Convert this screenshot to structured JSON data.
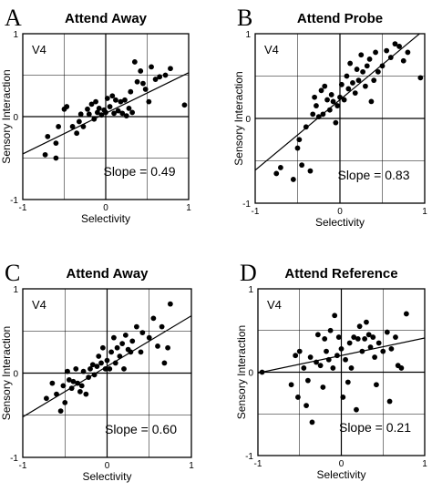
{
  "chart_data": [
    {
      "type": "scatter",
      "panel_letter": "A",
      "title": "Attend Away",
      "area_label": "V4",
      "annotation": "Slope = 0.49",
      "xlabel": "Selectivity",
      "ylabel": "Sensory Interaction",
      "xlim": [
        -1,
        1
      ],
      "ylim": [
        -1,
        1
      ],
      "xticks": [
        "-1",
        "0",
        "1"
      ],
      "yticks": [
        "-1",
        "0",
        "1"
      ],
      "grid": true,
      "fit": {
        "slope": 0.49,
        "intercept": 0.04
      },
      "points": [
        [
          -0.73,
          -0.46
        ],
        [
          -0.6,
          -0.5
        ],
        [
          -0.7,
          -0.24
        ],
        [
          -0.6,
          -0.32
        ],
        [
          -0.57,
          -0.12
        ],
        [
          -0.5,
          0.09
        ],
        [
          -0.47,
          0.12
        ],
        [
          -0.4,
          -0.12
        ],
        [
          -0.35,
          -0.2
        ],
        [
          -0.32,
          -0.06
        ],
        [
          -0.3,
          0.03
        ],
        [
          -0.27,
          -0.12
        ],
        [
          -0.22,
          0.09
        ],
        [
          -0.2,
          0.03
        ],
        [
          -0.17,
          0.15
        ],
        [
          -0.14,
          -0.03
        ],
        [
          -0.12,
          0.18
        ],
        [
          -0.1,
          0.05
        ],
        [
          -0.08,
          0.1
        ],
        [
          -0.05,
          0.02
        ],
        [
          -0.02,
          0.08
        ],
        [
          0.0,
          0.05
        ],
        [
          0.02,
          0.22
        ],
        [
          0.05,
          0.12
        ],
        [
          0.08,
          0.25
        ],
        [
          0.1,
          0.04
        ],
        [
          0.12,
          0.2
        ],
        [
          0.15,
          0.07
        ],
        [
          0.18,
          0.18
        ],
        [
          0.2,
          0.04
        ],
        [
          0.23,
          0.2
        ],
        [
          0.25,
          0.01
        ],
        [
          0.28,
          0.1
        ],
        [
          0.3,
          0.3
        ],
        [
          0.32,
          0.05
        ],
        [
          0.35,
          0.66
        ],
        [
          0.38,
          0.42
        ],
        [
          0.42,
          0.55
        ],
        [
          0.45,
          0.4
        ],
        [
          0.48,
          0.33
        ],
        [
          0.52,
          0.18
        ],
        [
          0.55,
          0.6
        ],
        [
          0.6,
          0.45
        ],
        [
          0.65,
          0.48
        ],
        [
          0.72,
          0.5
        ],
        [
          0.78,
          0.58
        ],
        [
          0.95,
          0.14
        ]
      ]
    },
    {
      "type": "scatter",
      "panel_letter": "B",
      "title": "Attend Probe",
      "area_label": "V4",
      "annotation": "Slope = 0.83",
      "xlabel": "Selectivity",
      "ylabel": "Sensory Interaction",
      "xlim": [
        -1,
        1
      ],
      "ylim": [
        -1,
        1
      ],
      "xticks": [
        "-1",
        "0",
        "1"
      ],
      "yticks": [
        "-1",
        "0",
        "1"
      ],
      "grid": true,
      "fit": {
        "slope": 0.83,
        "intercept": 0.22
      },
      "points": [
        [
          -0.75,
          -0.65
        ],
        [
          -0.7,
          -0.58
        ],
        [
          -0.55,
          -0.72
        ],
        [
          -0.5,
          -0.35
        ],
        [
          -0.48,
          -0.25
        ],
        [
          -0.45,
          -0.55
        ],
        [
          -0.4,
          -0.1
        ],
        [
          -0.35,
          -0.62
        ],
        [
          -0.32,
          0.05
        ],
        [
          -0.3,
          0.25
        ],
        [
          -0.28,
          0.15
        ],
        [
          -0.25,
          0.02
        ],
        [
          -0.22,
          0.33
        ],
        [
          -0.2,
          0.05
        ],
        [
          -0.18,
          0.38
        ],
        [
          -0.15,
          0.22
        ],
        [
          -0.12,
          0.1
        ],
        [
          -0.1,
          0.28
        ],
        [
          -0.08,
          0.2
        ],
        [
          -0.05,
          -0.05
        ],
        [
          -0.03,
          0.15
        ],
        [
          0.0,
          0.25
        ],
        [
          0.02,
          0.4
        ],
        [
          0.05,
          0.22
        ],
        [
          0.08,
          0.5
        ],
        [
          0.1,
          0.35
        ],
        [
          0.12,
          0.65
        ],
        [
          0.15,
          0.42
        ],
        [
          0.18,
          0.3
        ],
        [
          0.2,
          0.58
        ],
        [
          0.22,
          0.45
        ],
        [
          0.25,
          0.75
        ],
        [
          0.27,
          0.55
        ],
        [
          0.3,
          0.38
        ],
        [
          0.32,
          0.62
        ],
        [
          0.35,
          0.7
        ],
        [
          0.37,
          0.2
        ],
        [
          0.4,
          0.45
        ],
        [
          0.42,
          0.78
        ],
        [
          0.45,
          0.55
        ],
        [
          0.5,
          0.62
        ],
        [
          0.55,
          0.8
        ],
        [
          0.6,
          0.72
        ],
        [
          0.65,
          0.88
        ],
        [
          0.7,
          0.85
        ],
        [
          0.75,
          0.68
        ],
        [
          0.8,
          0.78
        ],
        [
          0.95,
          0.48
        ]
      ]
    },
    {
      "type": "scatter",
      "panel_letter": "C",
      "title": "Attend Away",
      "area_label": "V4",
      "annotation": "Slope = 0.60",
      "xlabel": "Selectivity",
      "ylabel": "Sensory Interaction",
      "xlim": [
        -1,
        1
      ],
      "ylim": [
        -1,
        1
      ],
      "xticks": [
        "-1",
        "0",
        "1"
      ],
      "yticks": [
        "-1",
        "0",
        "1"
      ],
      "grid": true,
      "fit": {
        "slope": 0.6,
        "intercept": 0.08
      },
      "points": [
        [
          -0.72,
          -0.3
        ],
        [
          -0.65,
          -0.12
        ],
        [
          -0.6,
          -0.25
        ],
        [
          -0.55,
          -0.45
        ],
        [
          -0.52,
          -0.15
        ],
        [
          -0.5,
          -0.35
        ],
        [
          -0.47,
          0.02
        ],
        [
          -0.45,
          -0.08
        ],
        [
          -0.42,
          -0.18
        ],
        [
          -0.4,
          -0.1
        ],
        [
          -0.37,
          0.05
        ],
        [
          -0.35,
          -0.12
        ],
        [
          -0.32,
          -0.22
        ],
        [
          -0.3,
          -0.15
        ],
        [
          -0.28,
          0.02
        ],
        [
          -0.25,
          -0.25
        ],
        [
          -0.22,
          -0.05
        ],
        [
          -0.2,
          0.05
        ],
        [
          -0.17,
          0.1
        ],
        [
          -0.15,
          -0.02
        ],
        [
          -0.12,
          0.08
        ],
        [
          -0.1,
          0.2
        ],
        [
          -0.07,
          0.12
        ],
        [
          -0.05,
          0.3
        ],
        [
          -0.02,
          0.05
        ],
        [
          0.0,
          0.15
        ],
        [
          0.03,
          0.05
        ],
        [
          0.05,
          0.25
        ],
        [
          0.08,
          0.42
        ],
        [
          0.1,
          0.12
        ],
        [
          0.12,
          0.3
        ],
        [
          0.15,
          0.2
        ],
        [
          0.18,
          0.35
        ],
        [
          0.2,
          0.05
        ],
        [
          0.22,
          0.45
        ],
        [
          0.25,
          0.28
        ],
        [
          0.28,
          0.25
        ],
        [
          0.3,
          0.38
        ],
        [
          0.35,
          0.55
        ],
        [
          0.4,
          0.25
        ],
        [
          0.42,
          0.48
        ],
        [
          0.5,
          0.42
        ],
        [
          0.55,
          0.65
        ],
        [
          0.6,
          0.32
        ],
        [
          0.65,
          0.55
        ],
        [
          0.68,
          0.12
        ],
        [
          0.72,
          0.3
        ],
        [
          0.75,
          0.82
        ]
      ]
    },
    {
      "type": "scatter",
      "panel_letter": "D",
      "title": "Attend Reference",
      "area_label": "V4",
      "annotation": "Slope = 0.21",
      "xlabel": "Selectivity",
      "ylabel": "Sensory Interaction",
      "xlim": [
        -1,
        1
      ],
      "ylim": [
        -1,
        1
      ],
      "xticks": [
        "-1",
        "0",
        "1"
      ],
      "yticks": [
        "-1",
        "0",
        "1"
      ],
      "grid": true,
      "fit": {
        "slope": 0.21,
        "intercept": 0.2
      },
      "points": [
        [
          -0.95,
          0.0
        ],
        [
          -0.6,
          -0.15
        ],
        [
          -0.55,
          0.2
        ],
        [
          -0.52,
          -0.3
        ],
        [
          -0.5,
          0.25
        ],
        [
          -0.45,
          0.05
        ],
        [
          -0.42,
          -0.4
        ],
        [
          -0.4,
          -0.1
        ],
        [
          -0.37,
          0.18
        ],
        [
          -0.35,
          -0.6
        ],
        [
          -0.3,
          0.12
        ],
        [
          -0.28,
          0.45
        ],
        [
          -0.25,
          0.08
        ],
        [
          -0.22,
          -0.18
        ],
        [
          -0.2,
          0.4
        ],
        [
          -0.18,
          0.25
        ],
        [
          -0.15,
          0.15
        ],
        [
          -0.13,
          0.5
        ],
        [
          -0.1,
          0.05
        ],
        [
          -0.08,
          0.68
        ],
        [
          -0.05,
          0.2
        ],
        [
          -0.03,
          0.42
        ],
        [
          0.0,
          0.28
        ],
        [
          0.02,
          -0.3
        ],
        [
          0.05,
          0.15
        ],
        [
          0.08,
          -0.12
        ],
        [
          0.1,
          0.35
        ],
        [
          0.12,
          0.05
        ],
        [
          0.15,
          0.42
        ],
        [
          0.18,
          -0.45
        ],
        [
          0.2,
          0.4
        ],
        [
          0.22,
          0.55
        ],
        [
          0.25,
          0.25
        ],
        [
          0.28,
          0.4
        ],
        [
          0.3,
          0.6
        ],
        [
          0.33,
          0.45
        ],
        [
          0.35,
          0.3
        ],
        [
          0.38,
          0.42
        ],
        [
          0.4,
          0.18
        ],
        [
          0.42,
          -0.15
        ],
        [
          0.45,
          0.35
        ],
        [
          0.5,
          0.25
        ],
        [
          0.55,
          0.48
        ],
        [
          0.58,
          -0.35
        ],
        [
          0.6,
          0.28
        ],
        [
          0.65,
          0.42
        ],
        [
          0.68,
          0.08
        ],
        [
          0.72,
          0.05
        ],
        [
          0.78,
          0.7
        ]
      ]
    }
  ]
}
